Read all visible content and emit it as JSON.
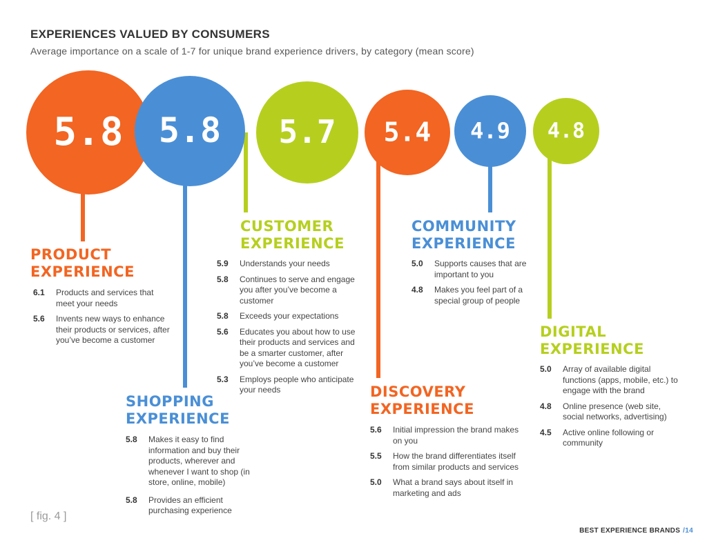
{
  "header": {
    "title": "EXPERIENCES VALUED BY CONSUMERS",
    "subtitle": "Average importance on a scale of 1-7 for unique brand experience drivers, by category (mean score)"
  },
  "chart_data": {
    "type": "bubble",
    "scale": [
      1,
      7
    ],
    "categories": [
      {
        "name_line1": "PRODUCT",
        "name_line2": "EXPERIENCE",
        "value": 5.8,
        "display": "5.8",
        "color": "#f26522",
        "items": [
          {
            "score": "6.1",
            "label": "Products and services that meet your needs"
          },
          {
            "score": "5.6",
            "label": "Invents new ways to enhance their products or services, after you’ve become a customer"
          }
        ]
      },
      {
        "name_line1": "SHOPPING",
        "name_line2": "EXPERIENCE",
        "value": 5.8,
        "display": "5.8",
        "color": "#4a8fd6",
        "items": [
          {
            "score": "5.8",
            "label": "Makes it easy to find information and buy their products, wherever and whenever I want to shop (in store, online, mobile)"
          },
          {
            "score": "5.8",
            "label": "Provides an efficient purchasing experience"
          }
        ]
      },
      {
        "name_line1": "CUSTOMER",
        "name_line2": "EXPERIENCE",
        "value": 5.7,
        "display": "5.7",
        "color": "#b6cf1f",
        "items": [
          {
            "score": "5.9",
            "label": "Understands your needs"
          },
          {
            "score": "5.8",
            "label": "Continues to serve and engage you after you’ve become a customer"
          },
          {
            "score": "5.8",
            "label": "Exceeds your expectations"
          },
          {
            "score": "5.6",
            "label": "Educates you about how to use their products and services and be a smarter customer, after you’ve become a customer"
          },
          {
            "score": "5.3",
            "label": "Employs people who anticipate your needs"
          }
        ]
      },
      {
        "name_line1": "DISCOVERY",
        "name_line2": "EXPERIENCE",
        "value": 5.4,
        "display": "5.4",
        "color": "#f26522",
        "items": [
          {
            "score": "5.6",
            "label": "Initial impression the brand makes on you"
          },
          {
            "score": "5.5",
            "label": "How the brand differentiates itself from similar products and services"
          },
          {
            "score": "5.0",
            "label": "What a brand says about itself in marketing and ads"
          }
        ]
      },
      {
        "name_line1": "COMMUNITY",
        "name_line2": "EXPERIENCE",
        "value": 4.9,
        "display": "4.9",
        "color": "#4a8fd6",
        "items": [
          {
            "score": "5.0",
            "label": "Supports causes that are important to you"
          },
          {
            "score": "4.8",
            "label": "Makes you feel part of a special group of people"
          }
        ]
      },
      {
        "name_line1": "DIGITAL",
        "name_line2": "EXPERIENCE",
        "value": 4.8,
        "display": "4.8",
        "color": "#b6cf1f",
        "items": [
          {
            "score": "5.0",
            "label": "Array of available digital functions (apps, mobile, etc.) to engage with the brand"
          },
          {
            "score": "4.8",
            "label": "Online presence (web site, social networks, advertising)"
          },
          {
            "score": "4.5",
            "label": "Active online following or community"
          }
        ]
      }
    ]
  },
  "footer": {
    "fig_label": "[ fig. 4 ]",
    "brand": "BEST EXPERIENCE BRANDS",
    "separator": "/",
    "page": "14"
  }
}
